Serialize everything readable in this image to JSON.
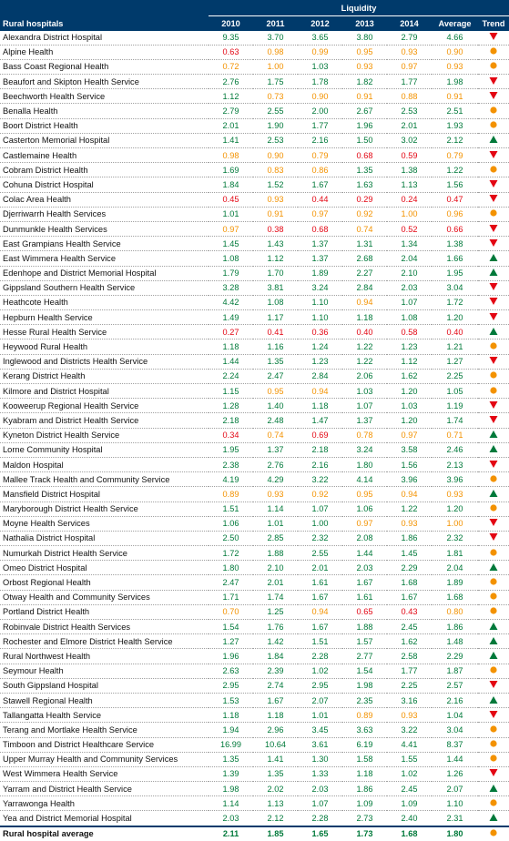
{
  "title": "Liquidity",
  "headers": [
    "Rural hospitals",
    "2010",
    "2011",
    "2012",
    "2013",
    "2014",
    "Average",
    "Trend"
  ],
  "legend_colors": {
    "green": "#00793a",
    "orange": "#f39200",
    "red": "#e30613",
    "header_bg": "#003a6b"
  },
  "rows": [
    {
      "name": "Alexandra District Hospital",
      "v": [
        "9.35",
        "3.70",
        "3.65",
        "3.80",
        "2.79",
        "4.66"
      ],
      "c": [
        "g",
        "g",
        "g",
        "g",
        "g",
        "g"
      ],
      "trend": "down"
    },
    {
      "name": "Alpine Health",
      "v": [
        "0.63",
        "0.98",
        "0.99",
        "0.95",
        "0.93",
        "0.90"
      ],
      "c": [
        "r",
        "o",
        "o",
        "o",
        "o",
        "o"
      ],
      "trend": "flat"
    },
    {
      "name": "Bass Coast Regional Health",
      "v": [
        "0.72",
        "1.00",
        "1.03",
        "0.93",
        "0.97",
        "0.93"
      ],
      "c": [
        "o",
        "o",
        "g",
        "o",
        "o",
        "o"
      ],
      "trend": "flat"
    },
    {
      "name": "Beaufort and Skipton Health Service",
      "v": [
        "2.76",
        "1.75",
        "1.78",
        "1.82",
        "1.77",
        "1.98"
      ],
      "c": [
        "g",
        "g",
        "g",
        "g",
        "g",
        "g"
      ],
      "trend": "down"
    },
    {
      "name": "Beechworth Health Service",
      "v": [
        "1.12",
        "0.73",
        "0.90",
        "0.91",
        "0.88",
        "0.91"
      ],
      "c": [
        "g",
        "o",
        "o",
        "o",
        "o",
        "o"
      ],
      "trend": "down"
    },
    {
      "name": "Benalla Health",
      "v": [
        "2.79",
        "2.55",
        "2.00",
        "2.67",
        "2.53",
        "2.51"
      ],
      "c": [
        "g",
        "g",
        "g",
        "g",
        "g",
        "g"
      ],
      "trend": "flat"
    },
    {
      "name": "Boort District Health",
      "v": [
        "2.01",
        "1.90",
        "1.77",
        "1.96",
        "2.01",
        "1.93"
      ],
      "c": [
        "g",
        "g",
        "g",
        "g",
        "g",
        "g"
      ],
      "trend": "flat"
    },
    {
      "name": "Casterton Memorial Hospital",
      "v": [
        "1.41",
        "2.53",
        "2.16",
        "1.50",
        "3.02",
        "2.12"
      ],
      "c": [
        "g",
        "g",
        "g",
        "g",
        "g",
        "g"
      ],
      "trend": "up"
    },
    {
      "name": "Castlemaine Health",
      "v": [
        "0.98",
        "0.90",
        "0.79",
        "0.68",
        "0.59",
        "0.79"
      ],
      "c": [
        "o",
        "o",
        "o",
        "r",
        "r",
        "o"
      ],
      "trend": "down"
    },
    {
      "name": "Cobram District Health",
      "v": [
        "1.69",
        "0.83",
        "0.86",
        "1.35",
        "1.38",
        "1.22"
      ],
      "c": [
        "g",
        "o",
        "o",
        "g",
        "g",
        "g"
      ],
      "trend": "flat"
    },
    {
      "name": "Cohuna District Hospital",
      "v": [
        "1.84",
        "1.52",
        "1.67",
        "1.63",
        "1.13",
        "1.56"
      ],
      "c": [
        "g",
        "g",
        "g",
        "g",
        "g",
        "g"
      ],
      "trend": "down"
    },
    {
      "name": "Colac Area Health",
      "v": [
        "0.45",
        "0.93",
        "0.44",
        "0.29",
        "0.24",
        "0.47"
      ],
      "c": [
        "r",
        "o",
        "r",
        "r",
        "r",
        "r"
      ],
      "trend": "down"
    },
    {
      "name": "Djerriwarrh Health Services",
      "v": [
        "1.01",
        "0.91",
        "0.97",
        "0.92",
        "1.00",
        "0.96"
      ],
      "c": [
        "g",
        "o",
        "o",
        "o",
        "o",
        "o"
      ],
      "trend": "flat"
    },
    {
      "name": "Dunmunkle Health Services",
      "v": [
        "0.97",
        "0.38",
        "0.68",
        "0.74",
        "0.52",
        "0.66"
      ],
      "c": [
        "o",
        "r",
        "r",
        "o",
        "r",
        "r"
      ],
      "trend": "down"
    },
    {
      "name": "East Grampians Health Service",
      "v": [
        "1.45",
        "1.43",
        "1.37",
        "1.31",
        "1.34",
        "1.38"
      ],
      "c": [
        "g",
        "g",
        "g",
        "g",
        "g",
        "g"
      ],
      "trend": "down"
    },
    {
      "name": "East Wimmera Health Service",
      "v": [
        "1.08",
        "1.12",
        "1.37",
        "2.68",
        "2.04",
        "1.66"
      ],
      "c": [
        "g",
        "g",
        "g",
        "g",
        "g",
        "g"
      ],
      "trend": "up"
    },
    {
      "name": "Edenhope and District Memorial Hospital",
      "v": [
        "1.79",
        "1.70",
        "1.89",
        "2.27",
        "2.10",
        "1.95"
      ],
      "c": [
        "g",
        "g",
        "g",
        "g",
        "g",
        "g"
      ],
      "trend": "up"
    },
    {
      "name": "Gippsland Southern Health Service",
      "v": [
        "3.28",
        "3.81",
        "3.24",
        "2.84",
        "2.03",
        "3.04"
      ],
      "c": [
        "g",
        "g",
        "g",
        "g",
        "g",
        "g"
      ],
      "trend": "down"
    },
    {
      "name": "Heathcote Health",
      "v": [
        "4.42",
        "1.08",
        "1.10",
        "0.94",
        "1.07",
        "1.72"
      ],
      "c": [
        "g",
        "g",
        "g",
        "o",
        "g",
        "g"
      ],
      "trend": "down"
    },
    {
      "name": "Hepburn Health Service",
      "v": [
        "1.49",
        "1.17",
        "1.10",
        "1.18",
        "1.08",
        "1.20"
      ],
      "c": [
        "g",
        "g",
        "g",
        "g",
        "g",
        "g"
      ],
      "trend": "down"
    },
    {
      "name": "Hesse Rural Health Service",
      "v": [
        "0.27",
        "0.41",
        "0.36",
        "0.40",
        "0.58",
        "0.40"
      ],
      "c": [
        "r",
        "r",
        "r",
        "r",
        "r",
        "r"
      ],
      "trend": "up"
    },
    {
      "name": "Heywood Rural Health",
      "v": [
        "1.18",
        "1.16",
        "1.24",
        "1.22",
        "1.23",
        "1.21"
      ],
      "c": [
        "g",
        "g",
        "g",
        "g",
        "g",
        "g"
      ],
      "trend": "flat"
    },
    {
      "name": "Inglewood and Districts Health Service",
      "v": [
        "1.44",
        "1.35",
        "1.23",
        "1.22",
        "1.12",
        "1.27"
      ],
      "c": [
        "g",
        "g",
        "g",
        "g",
        "g",
        "g"
      ],
      "trend": "down"
    },
    {
      "name": "Kerang District Health",
      "v": [
        "2.24",
        "2.47",
        "2.84",
        "2.06",
        "1.62",
        "2.25"
      ],
      "c": [
        "g",
        "g",
        "g",
        "g",
        "g",
        "g"
      ],
      "trend": "flat"
    },
    {
      "name": "Kilmore and District Hospital",
      "v": [
        "1.15",
        "0.95",
        "0.94",
        "1.03",
        "1.20",
        "1.05"
      ],
      "c": [
        "g",
        "o",
        "o",
        "g",
        "g",
        "g"
      ],
      "trend": "flat"
    },
    {
      "name": "Kooweerup Regional Health Service",
      "v": [
        "1.28",
        "1.40",
        "1.18",
        "1.07",
        "1.03",
        "1.19"
      ],
      "c": [
        "g",
        "g",
        "g",
        "g",
        "g",
        "g"
      ],
      "trend": "down"
    },
    {
      "name": "Kyabram and District Health Service",
      "v": [
        "2.18",
        "2.48",
        "1.47",
        "1.37",
        "1.20",
        "1.74"
      ],
      "c": [
        "g",
        "g",
        "g",
        "g",
        "g",
        "g"
      ],
      "trend": "down"
    },
    {
      "name": "Kyneton District Health Service",
      "v": [
        "0.34",
        "0.74",
        "0.69",
        "0.78",
        "0.97",
        "0.71"
      ],
      "c": [
        "r",
        "o",
        "r",
        "o",
        "o",
        "o"
      ],
      "trend": "up"
    },
    {
      "name": "Lorne Community Hospital",
      "v": [
        "1.95",
        "1.37",
        "2.18",
        "3.24",
        "3.58",
        "2.46"
      ],
      "c": [
        "g",
        "g",
        "g",
        "g",
        "g",
        "g"
      ],
      "trend": "up"
    },
    {
      "name": "Maldon Hospital",
      "v": [
        "2.38",
        "2.76",
        "2.16",
        "1.80",
        "1.56",
        "2.13"
      ],
      "c": [
        "g",
        "g",
        "g",
        "g",
        "g",
        "g"
      ],
      "trend": "down"
    },
    {
      "name": "Mallee Track Health and Community Service",
      "v": [
        "4.19",
        "4.29",
        "3.22",
        "4.14",
        "3.96",
        "3.96"
      ],
      "c": [
        "g",
        "g",
        "g",
        "g",
        "g",
        "g"
      ],
      "trend": "flat"
    },
    {
      "name": "Mansfield District Hospital",
      "v": [
        "0.89",
        "0.93",
        "0.92",
        "0.95",
        "0.94",
        "0.93"
      ],
      "c": [
        "o",
        "o",
        "o",
        "o",
        "o",
        "o"
      ],
      "trend": "up"
    },
    {
      "name": "Maryborough District Health Service",
      "v": [
        "1.51",
        "1.14",
        "1.07",
        "1.06",
        "1.22",
        "1.20"
      ],
      "c": [
        "g",
        "g",
        "g",
        "g",
        "g",
        "g"
      ],
      "trend": "flat"
    },
    {
      "name": "Moyne Health Services",
      "v": [
        "1.06",
        "1.01",
        "1.00",
        "0.97",
        "0.93",
        "1.00"
      ],
      "c": [
        "g",
        "g",
        "g",
        "o",
        "o",
        "o"
      ],
      "trend": "down"
    },
    {
      "name": "Nathalia District Hospital",
      "v": [
        "2.50",
        "2.85",
        "2.32",
        "2.08",
        "1.86",
        "2.32"
      ],
      "c": [
        "g",
        "g",
        "g",
        "g",
        "g",
        "g"
      ],
      "trend": "down"
    },
    {
      "name": "Numurkah District Health Service",
      "v": [
        "1.72",
        "1.88",
        "2.55",
        "1.44",
        "1.45",
        "1.81"
      ],
      "c": [
        "g",
        "g",
        "g",
        "g",
        "g",
        "g"
      ],
      "trend": "flat"
    },
    {
      "name": "Omeo District Hospital",
      "v": [
        "1.80",
        "2.10",
        "2.01",
        "2.03",
        "2.29",
        "2.04"
      ],
      "c": [
        "g",
        "g",
        "g",
        "g",
        "g",
        "g"
      ],
      "trend": "up"
    },
    {
      "name": "Orbost Regional Health",
      "v": [
        "2.47",
        "2.01",
        "1.61",
        "1.67",
        "1.68",
        "1.89"
      ],
      "c": [
        "g",
        "g",
        "g",
        "g",
        "g",
        "g"
      ],
      "trend": "flat"
    },
    {
      "name": "Otway Health and Community Services",
      "v": [
        "1.71",
        "1.74",
        "1.67",
        "1.61",
        "1.67",
        "1.68"
      ],
      "c": [
        "g",
        "g",
        "g",
        "g",
        "g",
        "g"
      ],
      "trend": "flat"
    },
    {
      "name": "Portland District Health",
      "v": [
        "0.70",
        "1.25",
        "0.94",
        "0.65",
        "0.43",
        "0.80"
      ],
      "c": [
        "o",
        "g",
        "o",
        "r",
        "r",
        "o"
      ],
      "trend": "flat"
    },
    {
      "name": "Robinvale District Health Services",
      "v": [
        "1.54",
        "1.76",
        "1.67",
        "1.88",
        "2.45",
        "1.86"
      ],
      "c": [
        "g",
        "g",
        "g",
        "g",
        "g",
        "g"
      ],
      "trend": "up"
    },
    {
      "name": "Rochester and Elmore District Health Service",
      "v": [
        "1.27",
        "1.42",
        "1.51",
        "1.57",
        "1.62",
        "1.48"
      ],
      "c": [
        "g",
        "g",
        "g",
        "g",
        "g",
        "g"
      ],
      "trend": "up"
    },
    {
      "name": "Rural Northwest Health",
      "v": [
        "1.96",
        "1.84",
        "2.28",
        "2.77",
        "2.58",
        "2.29"
      ],
      "c": [
        "g",
        "g",
        "g",
        "g",
        "g",
        "g"
      ],
      "trend": "up"
    },
    {
      "name": "Seymour Health",
      "v": [
        "2.63",
        "2.39",
        "1.02",
        "1.54",
        "1.77",
        "1.87"
      ],
      "c": [
        "g",
        "g",
        "g",
        "g",
        "g",
        "g"
      ],
      "trend": "flat"
    },
    {
      "name": "South Gippsland Hospital",
      "v": [
        "2.95",
        "2.74",
        "2.95",
        "1.98",
        "2.25",
        "2.57"
      ],
      "c": [
        "g",
        "g",
        "g",
        "g",
        "g",
        "g"
      ],
      "trend": "down"
    },
    {
      "name": "Stawell Regional Health",
      "v": [
        "1.53",
        "1.67",
        "2.07",
        "2.35",
        "3.16",
        "2.16"
      ],
      "c": [
        "g",
        "g",
        "g",
        "g",
        "g",
        "g"
      ],
      "trend": "up"
    },
    {
      "name": "Tallangatta Health Service",
      "v": [
        "1.18",
        "1.18",
        "1.01",
        "0.89",
        "0.93",
        "1.04"
      ],
      "c": [
        "g",
        "g",
        "g",
        "o",
        "o",
        "g"
      ],
      "trend": "down"
    },
    {
      "name": "Terang and Mortlake Health Service",
      "v": [
        "1.94",
        "2.96",
        "3.45",
        "3.63",
        "3.22",
        "3.04"
      ],
      "c": [
        "g",
        "g",
        "g",
        "g",
        "g",
        "g"
      ],
      "trend": "flat"
    },
    {
      "name": "Timboon and District Healthcare Service",
      "v": [
        "16.99",
        "10.64",
        "3.61",
        "6.19",
        "4.41",
        "8.37"
      ],
      "c": [
        "g",
        "g",
        "g",
        "g",
        "g",
        "g"
      ],
      "trend": "flat"
    },
    {
      "name": "Upper Murray Health and Community Services",
      "v": [
        "1.35",
        "1.41",
        "1.30",
        "1.58",
        "1.55",
        "1.44"
      ],
      "c": [
        "g",
        "g",
        "g",
        "g",
        "g",
        "g"
      ],
      "trend": "flat"
    },
    {
      "name": "West Wimmera Health Service",
      "v": [
        "1.39",
        "1.35",
        "1.33",
        "1.18",
        "1.02",
        "1.26"
      ],
      "c": [
        "g",
        "g",
        "g",
        "g",
        "g",
        "g"
      ],
      "trend": "down"
    },
    {
      "name": "Yarram and District Health Service",
      "v": [
        "1.98",
        "2.02",
        "2.03",
        "1.86",
        "2.45",
        "2.07"
      ],
      "c": [
        "g",
        "g",
        "g",
        "g",
        "g",
        "g"
      ],
      "trend": "up"
    },
    {
      "name": "Yarrawonga Health",
      "v": [
        "1.14",
        "1.13",
        "1.07",
        "1.09",
        "1.09",
        "1.10"
      ],
      "c": [
        "g",
        "g",
        "g",
        "g",
        "g",
        "g"
      ],
      "trend": "flat"
    },
    {
      "name": "Yea and District Memorial Hospital",
      "v": [
        "2.03",
        "2.12",
        "2.28",
        "2.73",
        "2.40",
        "2.31"
      ],
      "c": [
        "g",
        "g",
        "g",
        "g",
        "g",
        "g"
      ],
      "trend": "up"
    }
  ],
  "average_row": {
    "name": "Rural hospital average",
    "v": [
      "2.11",
      "1.85",
      "1.65",
      "1.73",
      "1.68",
      "1.80"
    ],
    "trend": "flat"
  }
}
